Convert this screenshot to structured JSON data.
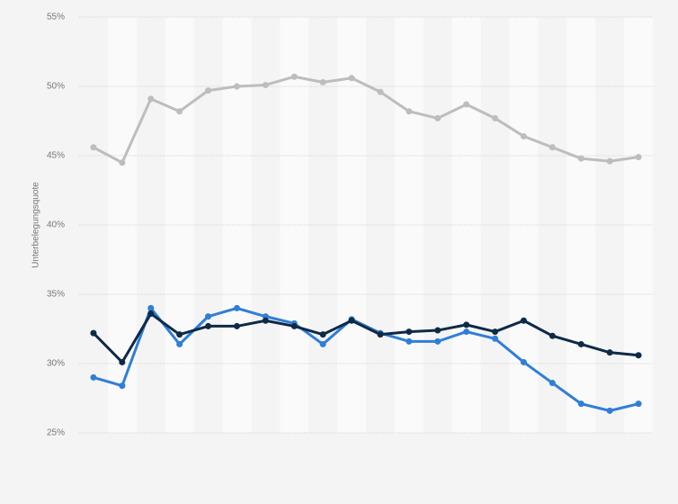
{
  "chart_data": {
    "type": "line",
    "y_label": "Unterbelegungsquote",
    "categories": [
      null,
      null,
      null,
      null,
      null,
      null,
      null,
      null,
      null,
      null,
      null,
      null,
      null,
      null,
      null,
      null,
      null,
      null,
      null,
      null
    ],
    "series": [
      {
        "color": "#bdbdbd",
        "values": [
          45.6,
          44.5,
          49.1,
          48.2,
          49.7,
          50.0,
          50.1,
          50.7,
          50.3,
          50.6,
          49.6,
          48.2,
          47.7,
          48.7,
          47.7,
          46.4,
          45.6,
          44.8,
          44.6,
          44.9
        ]
      },
      {
        "color": "#2f7ed8",
        "values": [
          29.0,
          28.4,
          34.0,
          31.4,
          33.4,
          34.0,
          33.4,
          32.9,
          31.4,
          33.2,
          32.2,
          31.6,
          31.6,
          32.3,
          31.8,
          30.1,
          28.6,
          27.1,
          26.6,
          27.1
        ]
      },
      {
        "color": "#0e2a47",
        "values": [
          32.2,
          30.1,
          33.6,
          32.1,
          32.7,
          32.7,
          33.1,
          32.7,
          32.1,
          33.1,
          32.1,
          32.3,
          32.4,
          32.8,
          32.3,
          33.1,
          32.0,
          31.4,
          30.8,
          30.6
        ]
      }
    ],
    "ylim": [
      25,
      55
    ],
    "yticks": [
      {
        "value": 25,
        "label": "25%"
      },
      {
        "value": 30,
        "label": "30%"
      },
      {
        "value": 35,
        "label": "35%"
      },
      {
        "value": 40,
        "label": "40%"
      },
      {
        "value": 45,
        "label": "45%"
      },
      {
        "value": 50,
        "label": "50%"
      },
      {
        "value": 55,
        "label": "55%"
      }
    ],
    "grid": true
  }
}
